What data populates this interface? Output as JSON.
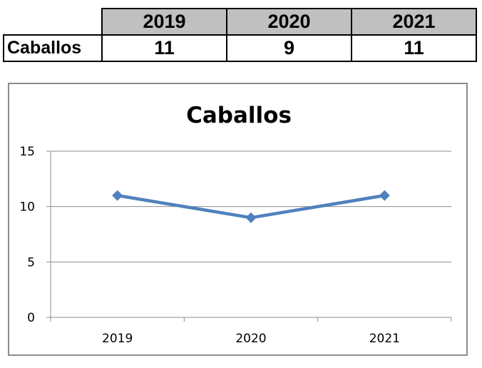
{
  "table": {
    "header_years": [
      "2019",
      "2020",
      "2021"
    ],
    "row_label": "Caballos",
    "row_values": [
      "11",
      "9",
      "11"
    ]
  },
  "chart_data": {
    "type": "line",
    "title": "Caballos",
    "categories": [
      "2019",
      "2020",
      "2021"
    ],
    "series": [
      {
        "values": [
          11,
          9,
          11
        ],
        "color": "#4f81bd",
        "marker": "diamond"
      }
    ],
    "ylim": [
      0,
      15
    ],
    "yticks": [
      0,
      5,
      10,
      15
    ],
    "ytick_labels": [
      "0",
      "5",
      "10",
      "15"
    ],
    "grid": true,
    "legend": "none",
    "xlabel": "",
    "ylabel": ""
  }
}
